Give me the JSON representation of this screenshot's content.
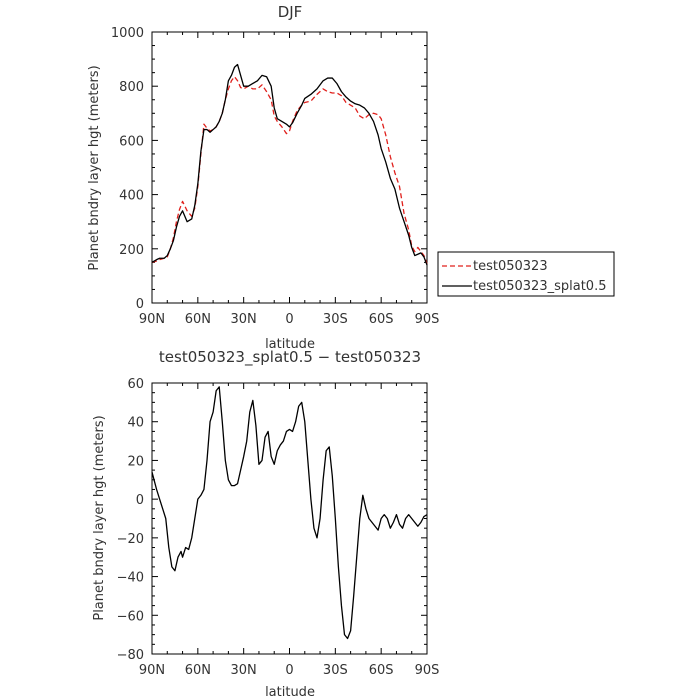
{
  "chart_data": [
    {
      "type": "line",
      "title": "DJF",
      "xlabel": "latitude",
      "ylabel": "Planet bndry layer hgt (meters)",
      "xlim": [
        90,
        -90
      ],
      "ylim": [
        0,
        1000
      ],
      "xticks": [
        90,
        60,
        30,
        0,
        -30,
        -60,
        -90
      ],
      "xtick_labels": [
        "90N",
        "60N",
        "30N",
        "0",
        "30S",
        "60S",
        "90S"
      ],
      "yticks": [
        0,
        200,
        400,
        600,
        800,
        1000
      ],
      "ytick_labels": [
        "0",
        "200",
        "400",
        "600",
        "800",
        "1000"
      ],
      "legend": "outside-right",
      "series": [
        {
          "name": "test050323",
          "color": "#e0201c",
          "dash": "dashed",
          "x": [
            90,
            87,
            85,
            82,
            80,
            78,
            76,
            74,
            72,
            70,
            67,
            64,
            62,
            60,
            58,
            56,
            54,
            52,
            50,
            48,
            46,
            44,
            42,
            40,
            38,
            36,
            34,
            32,
            30,
            27,
            24,
            21,
            18,
            15,
            12,
            10,
            8,
            5,
            2,
            0,
            -2,
            -5,
            -8,
            -10,
            -14,
            -18,
            -22,
            -25,
            -28,
            -31,
            -34,
            -37,
            -40,
            -43,
            -46,
            -49,
            -52,
            -55,
            -58,
            -60,
            -63,
            -66,
            -69,
            -72,
            -75,
            -78,
            -80,
            -82,
            -84,
            -86,
            -88,
            -90
          ],
          "y": [
            150,
            155,
            160,
            165,
            170,
            200,
            240,
            300,
            345,
            375,
            340,
            320,
            350,
            430,
            550,
            660,
            645,
            635,
            640,
            650,
            670,
            700,
            750,
            790,
            820,
            835,
            820,
            795,
            790,
            800,
            790,
            790,
            805,
            780,
            750,
            690,
            670,
            650,
            625,
            635,
            670,
            710,
            730,
            740,
            745,
            770,
            790,
            780,
            775,
            775,
            765,
            740,
            730,
            720,
            690,
            680,
            695,
            700,
            695,
            680,
            620,
            540,
            480,
            430,
            330,
            270,
            210,
            190,
            205,
            190,
            175,
            145
          ]
        },
        {
          "name": "test050323_splat0.5",
          "color": "#000000",
          "dash": "solid",
          "x": [
            90,
            87,
            85,
            82,
            80,
            78,
            76,
            74,
            72,
            70,
            67,
            64,
            62,
            60,
            58,
            56,
            54,
            52,
            50,
            48,
            46,
            44,
            42,
            40,
            38,
            36,
            34,
            32,
            30,
            27,
            24,
            21,
            18,
            15,
            12,
            10,
            8,
            5,
            2,
            0,
            -2,
            -5,
            -8,
            -10,
            -14,
            -18,
            -22,
            -25,
            -28,
            -31,
            -34,
            -37,
            -40,
            -43,
            -46,
            -49,
            -52,
            -55,
            -58,
            -60,
            -63,
            -66,
            -69,
            -72,
            -75,
            -78,
            -80,
            -82,
            -84,
            -86,
            -88,
            -90
          ],
          "y": [
            150,
            160,
            165,
            165,
            175,
            200,
            230,
            280,
            320,
            340,
            300,
            310,
            360,
            440,
            560,
            640,
            640,
            630,
            640,
            650,
            670,
            700,
            750,
            820,
            840,
            870,
            880,
            840,
            800,
            800,
            810,
            820,
            840,
            835,
            800,
            720,
            680,
            670,
            660,
            650,
            665,
            700,
            730,
            755,
            770,
            790,
            820,
            830,
            830,
            810,
            780,
            760,
            745,
            735,
            730,
            720,
            700,
            670,
            620,
            570,
            520,
            460,
            420,
            350,
            300,
            250,
            205,
            175,
            180,
            185,
            170,
            140
          ]
        }
      ]
    },
    {
      "type": "line",
      "title": "test050323_splat0.5 − test050323",
      "xlabel": "latitude",
      "ylabel": "Planet bndry layer hgt (meters)",
      "xlim": [
        90,
        -90
      ],
      "ylim": [
        -80,
        60
      ],
      "xticks": [
        90,
        60,
        30,
        0,
        -30,
        -60,
        -90
      ],
      "xtick_labels": [
        "90N",
        "60N",
        "30N",
        "0",
        "30S",
        "60S",
        "90S"
      ],
      "yticks": [
        -80,
        -60,
        -40,
        -20,
        0,
        20,
        40,
        60
      ],
      "ytick_labels": [
        "−80",
        "−60",
        "−40",
        "−20",
        "0",
        "20",
        "40",
        "60"
      ],
      "legend": "none",
      "series": [
        {
          "color": "#000000",
          "dash": "solid",
          "x": [
            90,
            87,
            85,
            83,
            81,
            79,
            77,
            75,
            73,
            71,
            70,
            68,
            66,
            64,
            62,
            60,
            58,
            56,
            54,
            52,
            50,
            48,
            46,
            44,
            42,
            40,
            38,
            36,
            34,
            32,
            30,
            28,
            26,
            24,
            22,
            20,
            18,
            16,
            14,
            12,
            10,
            8,
            6,
            4,
            2,
            0,
            -2,
            -4,
            -6,
            -8,
            -10,
            -12,
            -14,
            -16,
            -18,
            -20,
            -22,
            -24,
            -26,
            -28,
            -30,
            -32,
            -34,
            -36,
            -38,
            -40,
            -42,
            -44,
            -46,
            -48,
            -50,
            -52,
            -54,
            -56,
            -58,
            -60,
            -62,
            -64,
            -66,
            -68,
            -70,
            -72,
            -74,
            -76,
            -78,
            -80,
            -82,
            -84,
            -86,
            -88,
            -90
          ],
          "y": [
            14,
            5,
            0,
            -5,
            -10,
            -25,
            -35,
            -37,
            -30,
            -27,
            -30,
            -25,
            -26,
            -20,
            -10,
            0,
            2,
            5,
            20,
            40,
            45,
            56,
            58,
            40,
            20,
            10,
            7,
            7,
            8,
            15,
            22,
            30,
            45,
            51,
            38,
            18,
            20,
            32,
            35,
            22,
            18,
            25,
            28,
            30,
            35,
            36,
            35,
            40,
            48,
            50,
            40,
            20,
            0,
            -15,
            -20,
            -10,
            10,
            25,
            27,
            12,
            -10,
            -35,
            -55,
            -70,
            -72,
            -68,
            -50,
            -30,
            -10,
            2,
            -5,
            -10,
            -12,
            -14,
            -16,
            -10,
            -8,
            -10,
            -15,
            -12,
            -8,
            -13,
            -15,
            -10,
            -8,
            -10,
            -12,
            -14,
            -12,
            -9,
            -8
          ]
        }
      ]
    }
  ]
}
